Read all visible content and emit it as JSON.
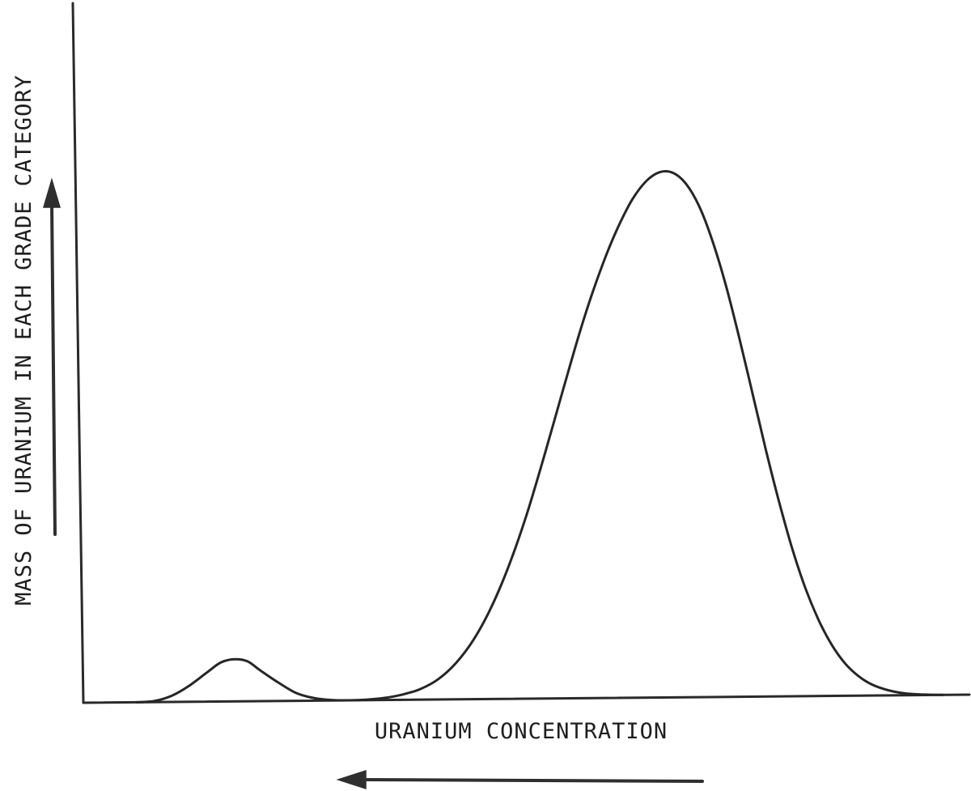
{
  "chart_data": {
    "type": "line",
    "title": "",
    "xlabel": "URANIUM CONCENTRATION",
    "ylabel": "MASS OF URANIUM IN EACH GRADE CATEGORY",
    "xlabel_arrow_direction": "left",
    "ylabel_arrow_direction": "up",
    "grid": false,
    "axis_ticks": false,
    "xlim": [
      0,
      100
    ],
    "ylim": [
      0,
      100
    ],
    "series": [
      {
        "x": [
          6,
          8,
          10,
          12,
          14,
          15.5,
          17,
          18.5,
          20,
          22,
          24,
          26,
          28,
          30,
          32,
          34,
          36,
          38,
          40,
          42,
          44,
          46,
          48,
          50,
          52,
          54,
          56,
          57.5,
          59,
          60.5,
          62,
          63.5,
          65,
          66.5,
          68,
          69.5,
          71,
          72.5,
          74,
          75.5,
          77,
          78.5,
          80,
          81.5,
          83,
          84.5,
          86,
          87.5,
          89,
          91,
          93,
          95,
          97
        ],
        "y": [
          0,
          0.2,
          1.2,
          3.1,
          5.6,
          7.4,
          8.0,
          7.6,
          5.8,
          3.5,
          1.5,
          0.5,
          0.1,
          0,
          0.1,
          0.4,
          1.0,
          2.0,
          3.8,
          6.8,
          11.2,
          17.3,
          25.2,
          34.8,
          46.0,
          57.8,
          69.4,
          77.2,
          84.1,
          90.0,
          94.8,
          98.1,
          99.8,
          99.7,
          97.6,
          93.3,
          86.7,
          78.3,
          68.4,
          57.8,
          47.1,
          37.1,
          28.1,
          20.5,
          14.4,
          9.6,
          6.1,
          3.7,
          2.1,
          0.9,
          0.3,
          0.1,
          0
        ]
      }
    ]
  }
}
